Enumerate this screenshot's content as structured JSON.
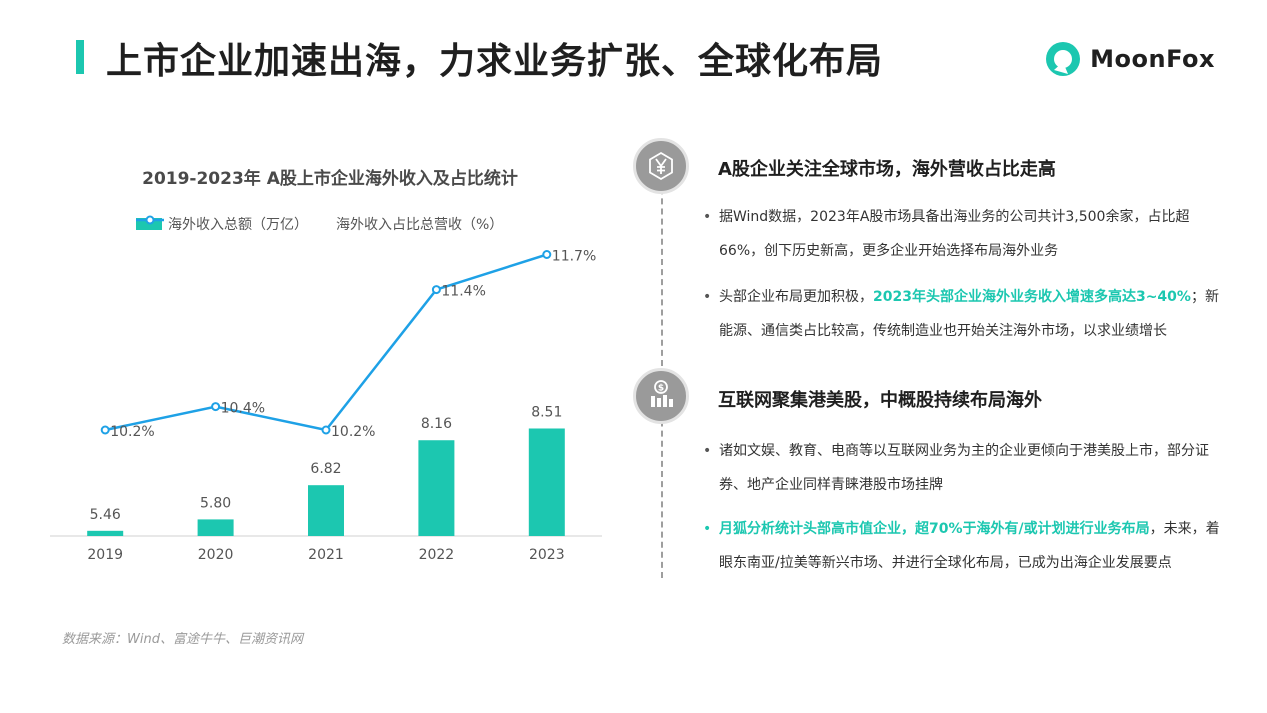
{
  "page": {
    "title": "上市企业加速出海，力求业务扩张、全球化布局",
    "logo_text": "MoonFox",
    "source": "数据来源：Wind、富途牛牛、巨潮资讯网"
  },
  "colors": {
    "bar": "#1cc7b0",
    "line": "#1ea1e6",
    "accent": "#1cc7b0",
    "icon_bg": "#9a9a9a"
  },
  "chart_data": {
    "type": "bar",
    "title": "2019-2023年 A股上市企业海外收入及占比统计",
    "categories": [
      "2019",
      "2020",
      "2021",
      "2022",
      "2023"
    ],
    "series": [
      {
        "name": "海外收入总额（万亿）",
        "type": "bar",
        "values": [
          5.46,
          5.8,
          6.82,
          8.16,
          8.51
        ],
        "labels": [
          "5.46",
          "5.80",
          "6.82",
          "8.16",
          "8.51"
        ]
      },
      {
        "name": "海外收入占比总营收（%）",
        "type": "line",
        "values": [
          10.2,
          10.4,
          10.2,
          11.4,
          11.7
        ],
        "labels": [
          "10.2%",
          "10.4%",
          "10.2%",
          "11.4%",
          "11.7%"
        ]
      }
    ],
    "grid": false,
    "legend": "top"
  },
  "sections": [
    {
      "icon": "yen-icon",
      "heading": "A股企业关注全球市场，海外营收占比走高",
      "bullets": [
        {
          "before": "据Wind数据，2023年A股市场具备出海业务的公司共计3,500余家，占比超66%，创下历史新高，更多企业开始选择布局海外业务",
          "highlight": "",
          "after": ""
        },
        {
          "before": "头部企业布局更加积极，",
          "highlight": "2023年头部企业海外业务收入增速多高达3~40%",
          "after": "；新能源、通信类占比较高，传统制造业也开始关注海外市场，以求业绩增长"
        }
      ]
    },
    {
      "icon": "money-bar-chart-icon",
      "heading": "互联网聚集港美股，中概股持续布局海外",
      "bullets": [
        {
          "before": "诸如文娱、教育、电商等以互联网业务为主的企业更倾向于港美股上市，部分证券、地产企业同样青睐港股市场挂牌",
          "highlight": "",
          "after": ""
        },
        {
          "before": "",
          "highlight": "月狐分析统计头部高市值企业，超70%于海外有/或计划进行业务布局",
          "after": "，未来，着眼东南亚/拉美等新兴市场、并进行全球化布局，已成为出海企业发展要点"
        }
      ]
    }
  ]
}
